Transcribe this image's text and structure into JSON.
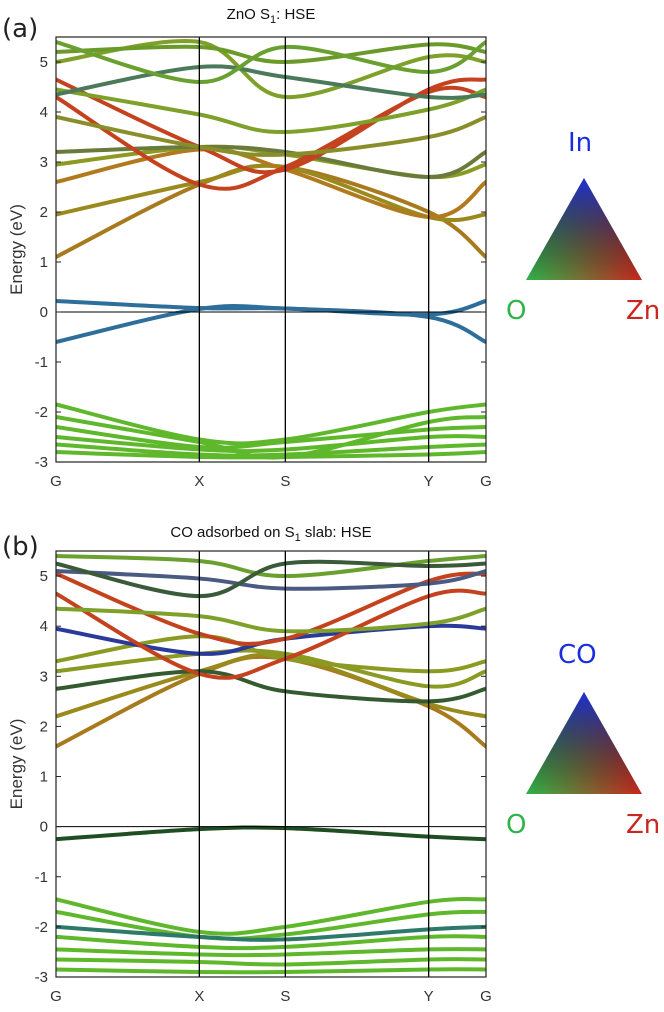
{
  "panels": [
    {
      "letter": "(a)",
      "triangle": {
        "top": "In",
        "left": "O",
        "right": "Zn",
        "top_color": "#1a2ee0",
        "left_color": "#2fb34a",
        "right_color": "#c8271f"
      }
    },
    {
      "letter": "(b)",
      "triangle": {
        "top": "CO",
        "left": "O",
        "right": "Zn",
        "top_color": "#1a2ee0",
        "left_color": "#2fb34a",
        "right_color": "#c8271f"
      }
    }
  ],
  "chart_data": [
    {
      "type": "line",
      "title_pre": "ZnO S",
      "title_sub": "1",
      "title_post": ": HSE",
      "ylabel": "Energy (eV)",
      "ylim": [
        -3,
        5.5
      ],
      "yticks": [
        "-3",
        "-2",
        "-1",
        "0",
        "1",
        "2",
        "3",
        "4",
        "5"
      ],
      "ytick_values": [
        -3,
        -2,
        -1,
        0,
        1,
        2,
        3,
        4,
        5
      ],
      "kpoints": [
        "G",
        "X",
        "S",
        "Y",
        "G"
      ],
      "kpos": [
        0,
        1,
        1.6,
        2.6,
        3.0
      ],
      "fermi_level": 0,
      "series": [
        {
          "color": "#2e6e9a",
          "values": [
            0.22,
            0.08,
            0.07,
            -0.05,
            0.22
          ]
        },
        {
          "color": "#2e6e9a",
          "values": [
            -0.6,
            0.06,
            0.07,
            -0.1,
            -0.6
          ]
        },
        {
          "color": "#a87a1e",
          "values": [
            1.1,
            2.55,
            2.9,
            2.0,
            1.1
          ]
        },
        {
          "color": "#9a8a1e",
          "values": [
            1.95,
            2.6,
            2.9,
            1.9,
            1.95
          ]
        },
        {
          "color": "#b27a1e",
          "values": [
            2.6,
            3.25,
            2.85,
            1.9,
            2.6
          ]
        },
        {
          "color": "#8a9a22",
          "values": [
            2.95,
            3.3,
            3.15,
            2.7,
            2.95
          ]
        },
        {
          "color": "#6a7a3a",
          "values": [
            3.2,
            3.3,
            3.2,
            2.7,
            3.2
          ]
        },
        {
          "color": "#c4421e",
          "values": [
            4.3,
            2.55,
            2.9,
            4.4,
            4.3
          ]
        },
        {
          "color": "#c4421e",
          "values": [
            4.65,
            3.3,
            2.85,
            4.45,
            4.65
          ]
        },
        {
          "color": "#8a8e2a",
          "values": [
            3.9,
            3.3,
            3.15,
            3.5,
            3.9
          ]
        },
        {
          "color": "#7fa02a",
          "values": [
            4.45,
            3.95,
            3.6,
            4.05,
            4.45
          ]
        },
        {
          "color": "#7fa02a",
          "values": [
            5.0,
            5.4,
            4.3,
            5.1,
            5.0
          ]
        },
        {
          "color": "#6a9a2a",
          "values": [
            5.2,
            5.3,
            5.0,
            5.35,
            5.2
          ]
        },
        {
          "color": "#4a7a5a",
          "values": [
            4.35,
            4.9,
            4.7,
            4.3,
            4.35
          ]
        },
        {
          "color": "#6aa030",
          "values": [
            5.4,
            4.6,
            5.3,
            4.8,
            5.4
          ]
        },
        {
          "color": "#5fb82c",
          "values": [
            -1.85,
            -2.55,
            -2.55,
            -2.0,
            -1.85
          ]
        },
        {
          "color": "#5fb82c",
          "values": [
            -2.1,
            -2.6,
            -2.9,
            -2.2,
            -2.1
          ]
        },
        {
          "color": "#5fb82c",
          "values": [
            -2.3,
            -2.7,
            -2.6,
            -2.35,
            -2.3
          ]
        },
        {
          "color": "#5fb82c",
          "values": [
            -2.5,
            -2.75,
            -2.75,
            -2.5,
            -2.5
          ]
        },
        {
          "color": "#5fb82c",
          "values": [
            -2.65,
            -2.85,
            -2.85,
            -2.7,
            -2.65
          ]
        },
        {
          "color": "#5fb82c",
          "values": [
            -2.8,
            -2.9,
            -2.9,
            -2.85,
            -2.8
          ]
        }
      ]
    },
    {
      "type": "line",
      "title_pre": "CO adsorbed on S",
      "title_sub": "1",
      "title_post": " slab: HSE",
      "ylabel": "Energy (eV)",
      "ylim": [
        -3,
        5.5
      ],
      "yticks": [
        "-3",
        "-2",
        "-1",
        "0",
        "1",
        "2",
        "3",
        "4",
        "5"
      ],
      "ytick_values": [
        -3,
        -2,
        -1,
        0,
        1,
        2,
        3,
        4,
        5
      ],
      "kpoints": [
        "G",
        "X",
        "S",
        "Y",
        "G"
      ],
      "kpos": [
        0,
        1,
        1.6,
        2.6,
        3.0
      ],
      "fermi_level": 0,
      "series": [
        {
          "color": "#1e4e22",
          "values": [
            -0.25,
            -0.05,
            -0.03,
            -0.2,
            -0.25
          ]
        },
        {
          "color": "#a87a1e",
          "values": [
            1.6,
            3.05,
            3.35,
            2.4,
            1.6
          ]
        },
        {
          "color": "#9a8a1e",
          "values": [
            2.2,
            3.1,
            3.4,
            2.45,
            2.2
          ]
        },
        {
          "color": "#345a30",
          "values": [
            2.75,
            3.1,
            2.7,
            2.5,
            2.75
          ]
        },
        {
          "color": "#8a9a22",
          "values": [
            3.1,
            3.45,
            3.45,
            2.8,
            3.1
          ]
        },
        {
          "color": "#8a9a22",
          "values": [
            3.3,
            3.8,
            3.35,
            3.1,
            3.3
          ]
        },
        {
          "color": "#2a3a9a",
          "values": [
            3.95,
            3.45,
            3.75,
            4.0,
            3.95
          ]
        },
        {
          "color": "#c4421e",
          "values": [
            4.65,
            3.05,
            3.35,
            4.6,
            4.65
          ]
        },
        {
          "color": "#c4421e",
          "values": [
            5.05,
            3.85,
            3.75,
            4.9,
            5.05
          ]
        },
        {
          "color": "#4a5a80",
          "values": [
            5.1,
            4.95,
            4.75,
            4.85,
            5.1
          ]
        },
        {
          "color": "#7fa02a",
          "values": [
            4.35,
            4.2,
            3.9,
            4.05,
            4.35
          ]
        },
        {
          "color": "#6aa030",
          "values": [
            5.4,
            5.3,
            5.0,
            5.3,
            5.4
          ]
        },
        {
          "color": "#3a5a3a",
          "values": [
            5.25,
            4.6,
            5.25,
            5.2,
            5.25
          ]
        },
        {
          "color": "#5fb82c",
          "values": [
            -1.45,
            -2.1,
            -2.0,
            -1.5,
            -1.45
          ]
        },
        {
          "color": "#5fb82c",
          "values": [
            -1.7,
            -2.2,
            -2.15,
            -1.75,
            -1.7
          ]
        },
        {
          "color": "#2e7a6a",
          "values": [
            -2.0,
            -2.2,
            -2.25,
            -2.05,
            -2.0
          ]
        },
        {
          "color": "#5fb82c",
          "values": [
            -2.2,
            -2.4,
            -2.4,
            -2.2,
            -2.2
          ]
        },
        {
          "color": "#5fb82c",
          "values": [
            -2.45,
            -2.55,
            -2.55,
            -2.45,
            -2.45
          ]
        },
        {
          "color": "#5fb82c",
          "values": [
            -2.65,
            -2.7,
            -2.75,
            -2.65,
            -2.65
          ]
        },
        {
          "color": "#5fb82c",
          "values": [
            -2.85,
            -2.9,
            -2.9,
            -2.85,
            -2.85
          ]
        }
      ]
    }
  ]
}
